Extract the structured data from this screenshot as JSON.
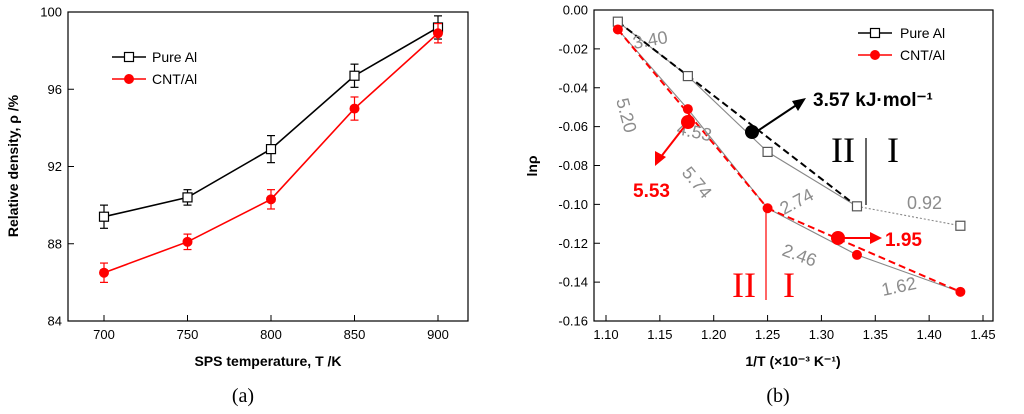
{
  "chart_data": [
    {
      "type": "line",
      "panel_label": "(a)",
      "xlabel": "SPS temperature, T /K",
      "ylabel": "Relative density, ρ /%",
      "categories": [
        700,
        750,
        800,
        850,
        900
      ],
      "ylim": [
        84,
        100
      ],
      "yticks": [
        "84",
        "88",
        "92",
        "96",
        "100"
      ],
      "xticks": [
        "700",
        "750",
        "800",
        "850",
        "900"
      ],
      "legend_position": "top-left",
      "series": [
        {
          "name": "Pure Al",
          "color": "#000000",
          "marker": "open-square",
          "values": [
            89.4,
            90.4,
            92.9,
            96.7,
            99.2
          ],
          "errors": [
            0.6,
            0.4,
            0.7,
            0.6,
            0.6
          ]
        },
        {
          "name": "CNT/Al",
          "color": "#ff0000",
          "marker": "filled-circle",
          "values": [
            86.5,
            88.1,
            90.3,
            95.0,
            98.9
          ],
          "errors": [
            0.5,
            0.4,
            0.5,
            0.6,
            0.5
          ]
        }
      ]
    },
    {
      "type": "line",
      "panel_label": "(b)",
      "xlabel": "1/T (×10⁻³ K⁻¹)",
      "ylabel": "lnρ",
      "xlim": [
        1.1,
        1.45
      ],
      "ylim": [
        -0.16,
        0.0
      ],
      "xticks": [
        "1.10",
        "1.15",
        "1.20",
        "1.25",
        "1.30",
        "1.35",
        "1.40",
        "1.45"
      ],
      "yticks": [
        "0.00",
        "-0.02",
        "-0.04",
        "-0.06",
        "-0.08",
        "-0.10",
        "-0.12",
        "-0.14",
        "-0.16"
      ],
      "legend_position": "top-right",
      "series": [
        {
          "name": "Pure Al",
          "color": "#000000",
          "marker": "open-square",
          "x": [
            1.111,
            1.176,
            1.25,
            1.333,
            1.429
          ],
          "y": [
            -0.006,
            -0.034,
            -0.073,
            -0.101,
            -0.111
          ]
        },
        {
          "name": "CNT/Al",
          "color": "#ff0000",
          "marker": "filled-circle",
          "x": [
            1.111,
            1.176,
            1.25,
            1.333,
            1.429
          ],
          "y": [
            -0.01,
            -0.051,
            -0.102,
            -0.126,
            -0.145
          ]
        }
      ],
      "annotations": {
        "gray_slopes": [
          "3.40",
          "4.53",
          "2.74",
          "0.92",
          "5.20",
          "5.74",
          "2.46",
          "1.62"
        ],
        "black_energy": "3.57 kJ·mol⁻¹",
        "red_energy_left": "5.53",
        "red_energy_right": "1.95",
        "stage_black_left": "II",
        "stage_black_right": "I",
        "stage_red_left": "II",
        "stage_red_right": "I"
      }
    }
  ]
}
